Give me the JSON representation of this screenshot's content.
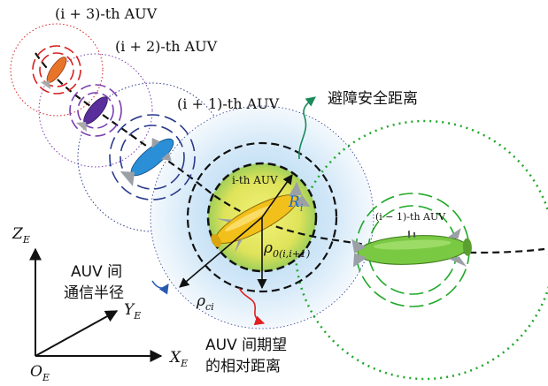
{
  "labels": {
    "auv_i3": "(i + 3)-th AUV",
    "auv_i2": "(i + 2)-th AUV",
    "auv_i1": "(i + 1)-th AUV",
    "auv_i": "i-th AUV",
    "auv_im1": "(i − 1)-th AUV",
    "obstacle_distance": "避障安全距离",
    "comm_radius_line1": "AUV 间",
    "comm_radius_line2": "通信半径",
    "relative_distance_line1": "AUV 间期望",
    "relative_distance_line2": "的相对距离",
    "r_i": "R",
    "r_i_sub": "i",
    "rho_ci": "ρ",
    "rho_ci_sub": "ci",
    "rho_0": "ρ",
    "rho_0_sub": "0(i,i+1)",
    "axis_z": "Z",
    "axis_z_sub": "E",
    "axis_y": "Y",
    "axis_y_sub": "E",
    "axis_x": "X",
    "axis_x_sub": "E",
    "origin": "O",
    "origin_sub": "E"
  },
  "colors": {
    "vehicle_orange": "#e8742a",
    "vehicle_purple": "#5a2d9c",
    "vehicle_blue": "#2a8fd6",
    "vehicle_yellow": "#f2c01a",
    "vehicle_green": "#7ac943",
    "ring_red": "#d62020",
    "ring_purple": "#7a3fb0",
    "ring_navy": "#2a3a8c",
    "ring_green": "#1fa82a",
    "blue_zone": "#cfe6f7",
    "yellow_zone": "#e6ea6a",
    "arrow_green": "#1a8a5a",
    "arrow_red": "#e02020",
    "arrow_blue": "#2a5ab0"
  }
}
